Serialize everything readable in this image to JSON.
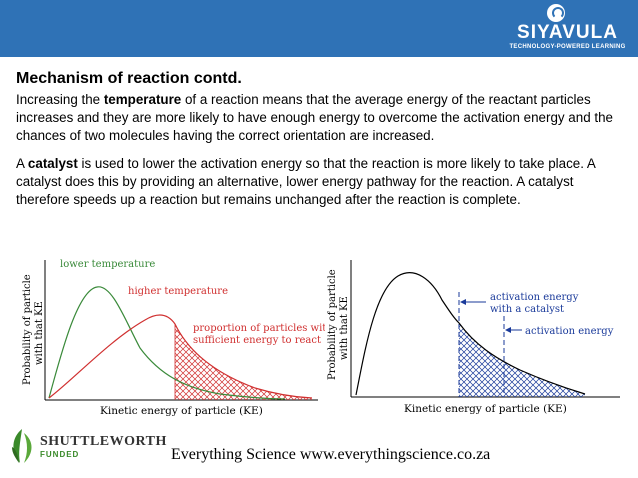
{
  "header": {
    "logo_name": "SIYAVULA",
    "logo_tagline": "TECHNOLOGY-POWERED LEARNING",
    "banner_color": "#2f72b6"
  },
  "slide": {
    "title": "Mechanism of reaction contd.",
    "para1": {
      "before": "Increasing the ",
      "bold": "temperature",
      "after": " of a reaction means that the average energy of the reactant particles increases and they are more likely to have enough energy to overcome the activation energy and the chances of two molecules having the correct orientation are increased."
    },
    "para2": {
      "before": "A ",
      "bold": "catalyst",
      "after": " is used to lower the activation energy so that the reaction is more likely to take place. A catalyst does this by providing an alternative, lower energy pathway for the reaction. A catalyst therefore speeds up a reaction but remains unchanged after the reaction is complete."
    }
  },
  "figure_left": {
    "y_label_line1": "Probability of particle",
    "y_label_line2": "with that KE",
    "x_label": "Kinetic energy of particle (KE)",
    "label_lower": "lower temperature",
    "label_higher": "higher temperature",
    "label_proportion_line1": "proportion of particles with",
    "label_proportion_line2": "sufficient energy to react",
    "colors": {
      "lower": "#3a8a3a",
      "higher": "#d03030"
    }
  },
  "figure_right": {
    "y_label_line1": "Probability of particle",
    "y_label_line2": "with that KE",
    "x_label": "Kinetic energy of particle (KE)",
    "label_catalyst_line1": "activation energy",
    "label_catalyst_line2": "with a catalyst",
    "label_activation": "activation energy",
    "colors": {
      "curve": "#000000",
      "marker": "#1a3a9a"
    }
  },
  "footer": {
    "text": "Everything Science www.everythingscience.co.za",
    "sponsor_name": "SHUTTLEWORTH",
    "sponsor_sub": "FUNDED"
  }
}
